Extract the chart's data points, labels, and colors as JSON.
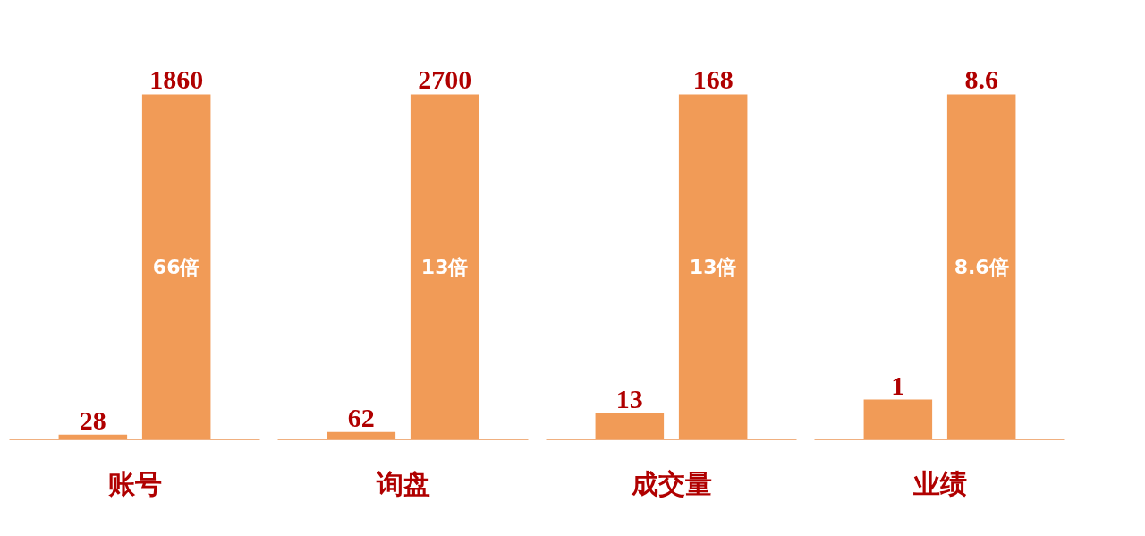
{
  "chart_data": [
    {
      "type": "bar",
      "categories": [
        "账号"
      ],
      "series": [
        {
          "color": "#ef8a3a",
          "values": [
            28
          ]
        },
        {
          "color": "#ef8a3a",
          "values": [
            1860
          ]
        }
      ],
      "data_labels": true,
      "annotations": [
        "66倍"
      ],
      "tick_labels": "x",
      "grid": false
    },
    {
      "type": "bar",
      "categories": [
        "询盘"
      ],
      "series": [
        {
          "color": "#ef8a3a",
          "values": [
            62
          ]
        },
        {
          "color": "#ef8a3a",
          "values": [
            2700
          ]
        }
      ],
      "data_labels": true,
      "annotations": [
        "13倍"
      ],
      "tick_labels": "x",
      "grid": false
    },
    {
      "type": "bar",
      "categories": [
        "成交量"
      ],
      "series": [
        {
          "color": "#ef8a3a",
          "values": [
            13
          ]
        },
        {
          "color": "#ef8a3a",
          "values": [
            168
          ]
        }
      ],
      "data_labels": true,
      "annotations": [
        "13倍"
      ],
      "tick_labels": "x",
      "grid": false
    },
    {
      "type": "bar",
      "categories": [
        "业绩"
      ],
      "series": [
        {
          "color": "#ef8a3a",
          "values": [
            1
          ]
        },
        {
          "color": "#ef8a3a",
          "values": [
            8.6
          ]
        }
      ],
      "data_labels": true,
      "annotations": [
        "8.6倍"
      ],
      "tick_labels": "x",
      "grid": false
    }
  ]
}
